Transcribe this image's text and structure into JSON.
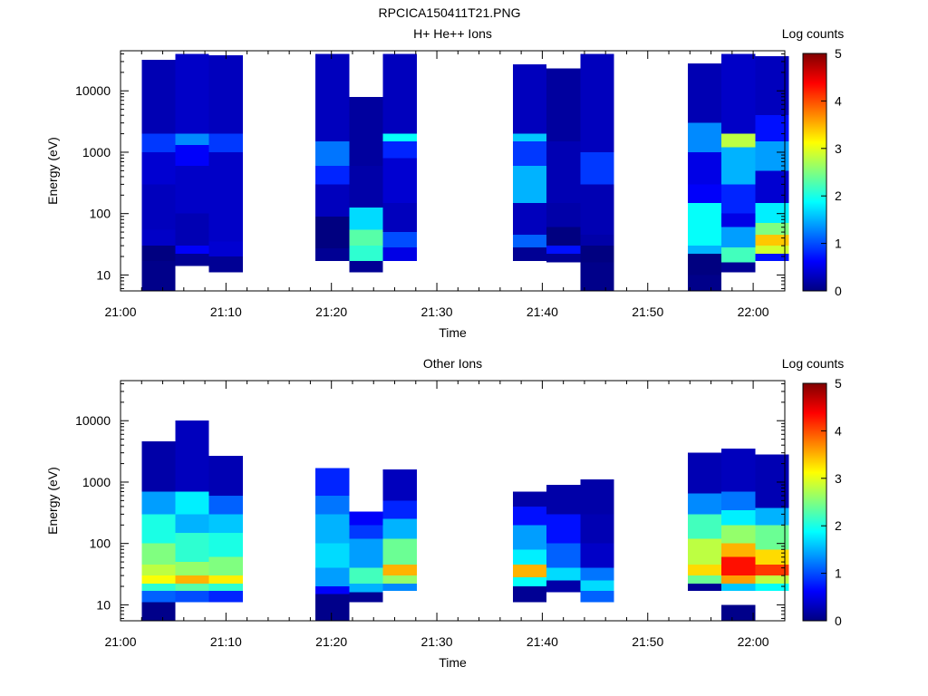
{
  "page_title": "RPCICA150411T21.PNG",
  "chart_data": [
    {
      "type": "heatmap",
      "title": "H+ He++ Ions",
      "xlabel": "Time",
      "ylabel": "Energy (eV)",
      "colorbar_label": "Log counts",
      "colorbar_ticks": [
        "0",
        "1",
        "2",
        "3",
        "4",
        "5"
      ],
      "colorbar_range": [
        0,
        5
      ],
      "colormap": "jet",
      "x_ticks": [
        "21:00",
        "21:10",
        "21:20",
        "21:30",
        "21:40",
        "21:50",
        "22:00"
      ],
      "x_tick_minutes": [
        0,
        10,
        20,
        30,
        40,
        50,
        60
      ],
      "xlim_minutes": [
        0,
        63
      ],
      "y_scale": "log",
      "ylim": [
        5.5,
        45000
      ],
      "y_ticks": [
        "10",
        "100",
        "1000",
        "10000"
      ],
      "y_tick_values": [
        10,
        100,
        1000,
        10000
      ],
      "columns": [
        {
          "start": 2.0,
          "end": 5.2,
          "segments": [
            [
              5.5,
              11,
              0.05
            ],
            [
              11,
              17,
              0.05
            ],
            [
              17,
              30,
              0
            ],
            [
              30,
              55,
              0.35
            ],
            [
              55,
              300,
              0.3
            ],
            [
              300,
              1000,
              0.4
            ],
            [
              1000,
              2000,
              0.9
            ],
            [
              2000,
              32000,
              0.25
            ]
          ]
        },
        {
          "start": 5.2,
          "end": 8.4,
          "segments": [
            [
              14,
              22,
              0.1
            ],
            [
              22,
              30,
              0.6
            ],
            [
              30,
              100,
              0.25
            ],
            [
              100,
              600,
              0.35
            ],
            [
              600,
              1300,
              0.6
            ],
            [
              1300,
              2000,
              1.3
            ],
            [
              2000,
              40000,
              0.35
            ]
          ]
        },
        {
          "start": 8.4,
          "end": 11.6,
          "segments": [
            [
              11,
              20,
              0.1
            ],
            [
              20,
              35,
              0.4
            ],
            [
              35,
              1000,
              0.35
            ],
            [
              1000,
              2000,
              0.9
            ],
            [
              2000,
              38000,
              0.3
            ]
          ]
        },
        {
          "start": 18.5,
          "end": 21.7,
          "segments": [
            [
              17,
              27,
              0.1
            ],
            [
              27,
              90,
              0
            ],
            [
              90,
              300,
              0.3
            ],
            [
              300,
              600,
              0.8
            ],
            [
              600,
              1500,
              1.2
            ],
            [
              1500,
              40000,
              0.3
            ]
          ]
        },
        {
          "start": 21.7,
          "end": 24.9,
          "segments": [
            [
              11,
              17,
              0.1
            ],
            [
              17,
              30,
              2.1
            ],
            [
              30,
              55,
              2.3
            ],
            [
              55,
              125,
              1.7
            ],
            [
              125,
              600,
              0.2
            ],
            [
              600,
              8000,
              0.15
            ]
          ]
        },
        {
          "start": 24.9,
          "end": 28.1,
          "segments": [
            [
              17,
              28,
              0.5
            ],
            [
              28,
              50,
              1.0
            ],
            [
              50,
              150,
              0.3
            ],
            [
              150,
              800,
              0.4
            ],
            [
              800,
              1500,
              0.8
            ],
            [
              1500,
              2000,
              1.9
            ],
            [
              2000,
              40000,
              0.3
            ]
          ]
        },
        {
          "start": 37.2,
          "end": 40.4,
          "segments": [
            [
              17,
              28,
              0.1
            ],
            [
              28,
              45,
              1.1
            ],
            [
              45,
              150,
              0.3
            ],
            [
              150,
              600,
              1.5
            ],
            [
              600,
              1500,
              0.9
            ],
            [
              1500,
              2000,
              1.6
            ],
            [
              2000,
              27000,
              0.3
            ]
          ]
        },
        {
          "start": 40.4,
          "end": 43.6,
          "segments": [
            [
              16,
              22,
              0.1
            ],
            [
              22,
              30,
              0.7
            ],
            [
              30,
              60,
              0
            ],
            [
              60,
              150,
              0.2
            ],
            [
              150,
              1500,
              0.25
            ],
            [
              1500,
              23000,
              0.15
            ]
          ]
        },
        {
          "start": 43.6,
          "end": 46.8,
          "segments": [
            [
              5.5,
              16,
              0.05
            ],
            [
              16,
              30,
              0
            ],
            [
              30,
              45,
              0.2
            ],
            [
              45,
              300,
              0.25
            ],
            [
              300,
              1000,
              0.9
            ],
            [
              1000,
              40000,
              0.3
            ]
          ]
        },
        {
          "start": 53.8,
          "end": 57.0,
          "segments": [
            [
              5.5,
              10,
              0.05
            ],
            [
              10,
              22,
              0
            ],
            [
              22,
              30,
              1.5
            ],
            [
              30,
              150,
              1.9
            ],
            [
              150,
              300,
              0.6
            ],
            [
              300,
              1000,
              0.5
            ],
            [
              1000,
              3000,
              1.3
            ],
            [
              3000,
              28000,
              0.25
            ]
          ]
        },
        {
          "start": 57.0,
          "end": 60.2,
          "segments": [
            [
              11,
              16,
              0.1
            ],
            [
              16,
              28,
              2.2
            ],
            [
              28,
              60,
              1.4
            ],
            [
              60,
              100,
              0.5
            ],
            [
              100,
              300,
              0.8
            ],
            [
              300,
              1200,
              1.5
            ],
            [
              1200,
              2000,
              2.8
            ],
            [
              2000,
              40000,
              0.35
            ]
          ]
        },
        {
          "start": 60.2,
          "end": 63.4,
          "segments": [
            [
              17,
              22,
              0.7
            ],
            [
              22,
              30,
              2.9
            ],
            [
              30,
              45,
              3.4
            ],
            [
              45,
              70,
              2.5
            ],
            [
              70,
              150,
              1.8
            ],
            [
              150,
              500,
              0.4
            ],
            [
              500,
              1500,
              1.4
            ],
            [
              1500,
              4000,
              0.7
            ],
            [
              4000,
              37000,
              0.3
            ]
          ]
        }
      ]
    },
    {
      "type": "heatmap",
      "title": "Other Ions",
      "xlabel": "Time",
      "ylabel": "Energy (eV)",
      "colorbar_label": "Log counts",
      "colorbar_ticks": [
        "0",
        "1",
        "2",
        "3",
        "4",
        "5"
      ],
      "colorbar_range": [
        0,
        5
      ],
      "colormap": "jet",
      "x_ticks": [
        "21:00",
        "21:10",
        "21:20",
        "21:30",
        "21:40",
        "21:50",
        "22:00"
      ],
      "x_tick_minutes": [
        0,
        10,
        20,
        30,
        40,
        50,
        60
      ],
      "xlim_minutes": [
        0,
        63
      ],
      "y_scale": "log",
      "ylim": [
        5.5,
        45000
      ],
      "y_ticks": [
        "10",
        "100",
        "1000",
        "10000"
      ],
      "y_tick_values": [
        10,
        100,
        1000,
        10000
      ],
      "columns": [
        {
          "start": 2.0,
          "end": 5.2,
          "segments": [
            [
              5.5,
              11,
              0.05
            ],
            [
              11,
              17,
              1.1
            ],
            [
              17,
              22,
              2.1
            ],
            [
              22,
              30,
              3.1
            ],
            [
              30,
              45,
              2.8
            ],
            [
              45,
              100,
              2.5
            ],
            [
              100,
              300,
              2.0
            ],
            [
              300,
              700,
              1.4
            ],
            [
              700,
              4600,
              0.2
            ]
          ]
        },
        {
          "start": 5.2,
          "end": 8.4,
          "segments": [
            [
              11,
              17,
              1.0
            ],
            [
              17,
              22,
              2.3
            ],
            [
              22,
              30,
              3.5
            ],
            [
              30,
              50,
              2.6
            ],
            [
              50,
              150,
              2.1
            ],
            [
              150,
              300,
              1.5
            ],
            [
              300,
              700,
              1.8
            ],
            [
              700,
              10000,
              0.3
            ]
          ]
        },
        {
          "start": 8.4,
          "end": 11.6,
          "segments": [
            [
              11,
              17,
              0.8
            ],
            [
              17,
              22,
              2.1
            ],
            [
              22,
              30,
              3.2
            ],
            [
              30,
              60,
              2.5
            ],
            [
              60,
              150,
              2.0
            ],
            [
              150,
              300,
              1.6
            ],
            [
              300,
              600,
              1.1
            ],
            [
              600,
              2700,
              0.25
            ]
          ]
        },
        {
          "start": 18.5,
          "end": 21.7,
          "segments": [
            [
              5.5,
              15,
              0.05
            ],
            [
              15,
              20,
              0.6
            ],
            [
              20,
              40,
              1.4
            ],
            [
              40,
              100,
              1.7
            ],
            [
              100,
              300,
              1.5
            ],
            [
              300,
              600,
              1.2
            ],
            [
              600,
              1700,
              0.8
            ]
          ]
        },
        {
          "start": 21.7,
          "end": 24.9,
          "segments": [
            [
              11,
              16,
              0.1
            ],
            [
              16,
              22,
              1.5
            ],
            [
              22,
              40,
              2.2
            ],
            [
              40,
              120,
              1.4
            ],
            [
              120,
              200,
              0.9
            ],
            [
              200,
              330,
              0.6
            ]
          ]
        },
        {
          "start": 24.9,
          "end": 28.1,
          "segments": [
            [
              17,
              22,
              1.3
            ],
            [
              22,
              30,
              2.6
            ],
            [
              30,
              45,
              3.5
            ],
            [
              45,
              120,
              2.4
            ],
            [
              120,
              250,
              1.5
            ],
            [
              250,
              500,
              0.8
            ],
            [
              500,
              1600,
              0.3
            ]
          ]
        },
        {
          "start": 37.2,
          "end": 40.4,
          "segments": [
            [
              11,
              20,
              0.1
            ],
            [
              20,
              28,
              1.9
            ],
            [
              28,
              45,
              3.5
            ],
            [
              45,
              80,
              1.8
            ],
            [
              80,
              200,
              1.4
            ],
            [
              200,
              400,
              0.7
            ],
            [
              400,
              700,
              0.2
            ]
          ]
        },
        {
          "start": 40.4,
          "end": 43.6,
          "segments": [
            [
              16,
              25,
              0.2
            ],
            [
              25,
              40,
              1.7
            ],
            [
              40,
              100,
              1.1
            ],
            [
              100,
              300,
              0.7
            ],
            [
              300,
              900,
              0.2
            ]
          ]
        },
        {
          "start": 43.6,
          "end": 46.8,
          "segments": [
            [
              11,
              17,
              1.1
            ],
            [
              17,
              25,
              1.7
            ],
            [
              25,
              40,
              1.2
            ],
            [
              40,
              100,
              0.35
            ],
            [
              100,
              300,
              0.25
            ],
            [
              300,
              1100,
              0.2
            ]
          ]
        },
        {
          "start": 53.8,
          "end": 57.0,
          "segments": [
            [
              17,
              22,
              0.1
            ],
            [
              22,
              30,
              2.4
            ],
            [
              30,
              45,
              3.3
            ],
            [
              45,
              120,
              2.8
            ],
            [
              120,
              300,
              2.2
            ],
            [
              300,
              650,
              1.3
            ],
            [
              650,
              3000,
              0.25
            ]
          ]
        },
        {
          "start": 57.0,
          "end": 60.2,
          "segments": [
            [
              5.5,
              10,
              0.05
            ],
            [
              17,
              22,
              1.6
            ],
            [
              22,
              30,
              3.6
            ],
            [
              30,
              60,
              4.3
            ],
            [
              60,
              100,
              3.5
            ],
            [
              100,
              200,
              2.6
            ],
            [
              200,
              350,
              1.8
            ],
            [
              350,
              700,
              1.2
            ],
            [
              700,
              3500,
              0.3
            ]
          ]
        },
        {
          "start": 60.2,
          "end": 63.4,
          "segments": [
            [
              17,
              22,
              1.9
            ],
            [
              22,
              30,
              2.8
            ],
            [
              30,
              45,
              4.1
            ],
            [
              45,
              80,
              3.3
            ],
            [
              80,
              200,
              2.4
            ],
            [
              200,
              380,
              1.5
            ],
            [
              380,
              2800,
              0.25
            ]
          ]
        }
      ]
    }
  ]
}
